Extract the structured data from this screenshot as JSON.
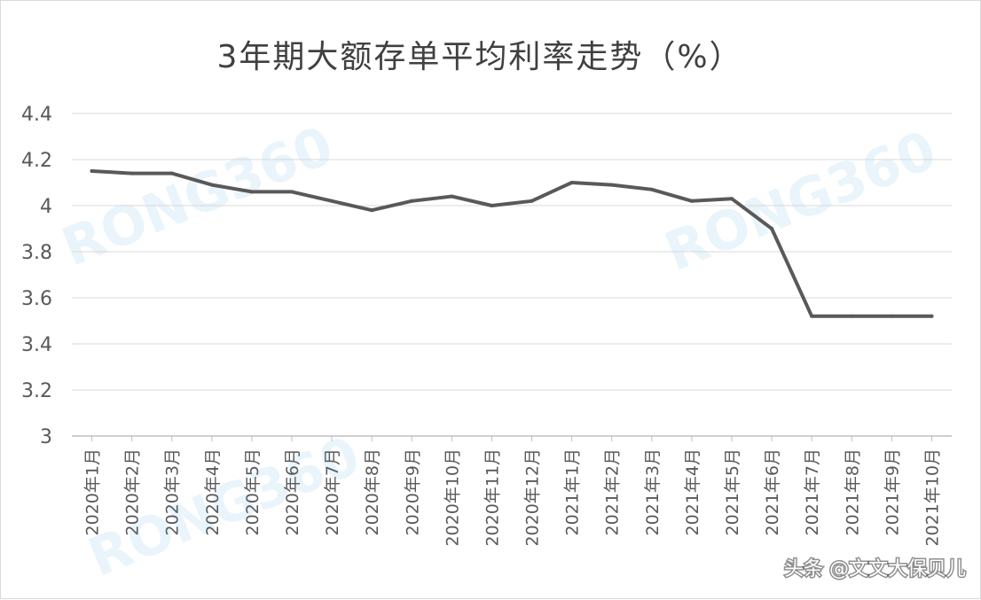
{
  "chart_data": {
    "type": "line",
    "title": "3年期大额存单平均利率走势（%）",
    "xlabel": "",
    "ylabel": "",
    "ylim": [
      3,
      4.4
    ],
    "yticks": [
      "3",
      "3.2",
      "3.4",
      "3.6",
      "3.8",
      "4",
      "4.2",
      "4.4"
    ],
    "grid": true,
    "legend": "none",
    "categories": [
      "2020年1月",
      "2020年2月",
      "2020年3月",
      "2020年4月",
      "2020年5月",
      "2020年6月",
      "2020年7月",
      "2020年8月",
      "2020年9月",
      "2020年10月",
      "2020年11月",
      "2020年12月",
      "2021年1月",
      "2021年2月",
      "2021年3月",
      "2021年4月",
      "2021年5月",
      "2021年6月",
      "2021年7月",
      "2021年8月",
      "2021年9月",
      "2021年10月"
    ],
    "series": [
      {
        "values": [
          4.15,
          4.14,
          4.14,
          4.09,
          4.06,
          4.06,
          4.02,
          3.98,
          4.02,
          4.04,
          4.0,
          4.02,
          4.1,
          4.09,
          4.07,
          4.02,
          4.03,
          3.9,
          3.52,
          3.52,
          3.52,
          3.52
        ],
        "color": "#595959"
      }
    ],
    "colors": {
      "line": "#595959",
      "grid": "#d9d9d9",
      "axis": "#bfbfbf",
      "text": "#595959",
      "title": "#404040",
      "watermark": "#d7ebf7"
    }
  },
  "watermark": "RONG360",
  "credit": "头条 @文文大保贝儿"
}
